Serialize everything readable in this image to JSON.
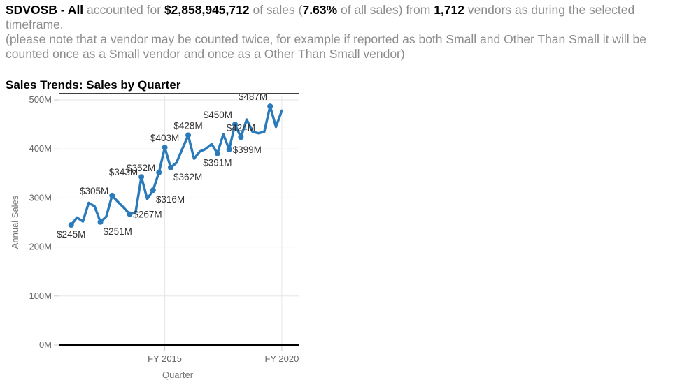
{
  "summary": {
    "segment": "SDVOSB - All",
    "t1": " accounted for ",
    "amount": "$2,858,945,712",
    "t2": " of sales (",
    "percent": "7.63%",
    "t3": " of all sales) from ",
    "vendors": "1,712",
    "t4": " vendors as during the selected timeframe.",
    "note": "(please note that a vendor may be counted twice, for example if reported as both Small and Other Than Small it will be counted once as a Small vendor and once as a Other Than Small vendor)"
  },
  "chart_data": {
    "type": "line",
    "title": "Sales Trends:  Sales by Quarter",
    "xlabel": "Quarter",
    "ylabel": "Annual Sales",
    "ylim": [
      0,
      500
    ],
    "yticks": [
      {
        "value": 0,
        "label": "0M"
      },
      {
        "value": 100,
        "label": "100M"
      },
      {
        "value": 200,
        "label": "200M"
      },
      {
        "value": 300,
        "label": "300M"
      },
      {
        "value": 400,
        "label": "400M"
      },
      {
        "value": 500,
        "label": "500M"
      }
    ],
    "xticks": [
      {
        "x": 2015.0,
        "label": "FY 2015"
      },
      {
        "x": 2020.0,
        "label": "FY 2020"
      }
    ],
    "xlim": [
      2010.5,
      2020.75
    ],
    "grid": true,
    "color": "#2b7bba",
    "series": [
      {
        "x": [
          2011.0,
          2011.25,
          2011.5,
          2011.75,
          2012.0,
          2012.25,
          2012.5,
          2012.75,
          2013.0,
          2013.25,
          2013.5,
          2013.75,
          2014.0,
          2014.25,
          2014.5,
          2014.75,
          2015.0,
          2015.25,
          2015.5,
          2015.75,
          2016.0,
          2016.25,
          2016.5,
          2016.75,
          2017.0,
          2017.25,
          2017.5,
          2017.75,
          2018.0,
          2018.25,
          2018.5,
          2018.75,
          2019.0,
          2019.25,
          2019.5,
          2019.75,
          2020.0
        ],
        "values": [
          245,
          260,
          252,
          290,
          283,
          251,
          262,
          305,
          292,
          280,
          267,
          270,
          343,
          298,
          316,
          352,
          403,
          362,
          372,
          400,
          428,
          380,
          395,
          400,
          410,
          391,
          430,
          399,
          450,
          424,
          460,
          435,
          432,
          435,
          487,
          445,
          478
        ]
      }
    ],
    "labels": [
      {
        "i": 0,
        "text": "$245M",
        "pos": "below"
      },
      {
        "i": 5,
        "text": "$251M",
        "pos": "below-right"
      },
      {
        "i": 7,
        "text": "$305M",
        "pos": "left"
      },
      {
        "i": 10,
        "text": "$267M",
        "pos": "right"
      },
      {
        "i": 12,
        "text": "$343M",
        "pos": "left"
      },
      {
        "i": 14,
        "text": "$316M",
        "pos": "below-right"
      },
      {
        "i": 15,
        "text": "$352M",
        "pos": "left"
      },
      {
        "i": 16,
        "text": "$403M",
        "pos": "above"
      },
      {
        "i": 17,
        "text": "$362M",
        "pos": "below-right"
      },
      {
        "i": 20,
        "text": "$428M",
        "pos": "above"
      },
      {
        "i": 25,
        "text": "$391M",
        "pos": "below"
      },
      {
        "i": 27,
        "text": "$399M",
        "pos": "right"
      },
      {
        "i": 28,
        "text": "$450M",
        "pos": "above-left"
      },
      {
        "i": 29,
        "text": "$424M",
        "pos": "above"
      },
      {
        "i": 34,
        "text": "$487M",
        "pos": "above-left"
      }
    ]
  }
}
